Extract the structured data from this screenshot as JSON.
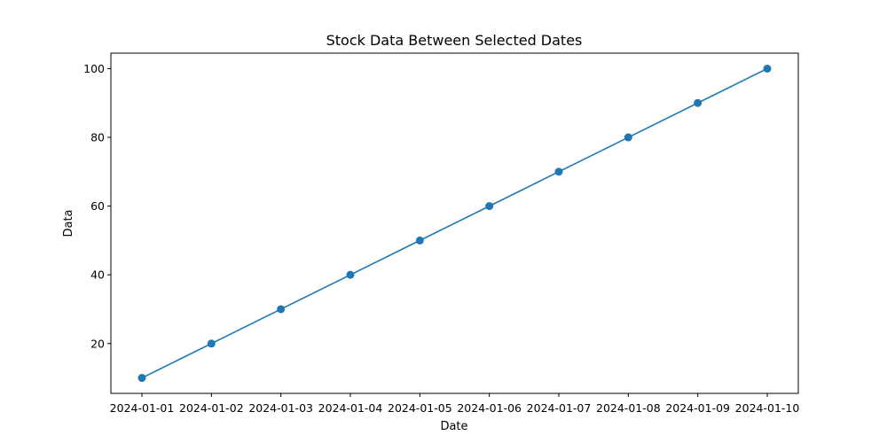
{
  "chart_data": {
    "type": "line",
    "title": "Stock Data Between Selected Dates",
    "xlabel": "Date",
    "ylabel": "Data",
    "x": [
      "2024-01-01",
      "2024-01-02",
      "2024-01-03",
      "2024-01-04",
      "2024-01-05",
      "2024-01-06",
      "2024-01-07",
      "2024-01-08",
      "2024-01-09",
      "2024-01-10"
    ],
    "series": [
      {
        "values": [
          10,
          20,
          30,
          40,
          50,
          60,
          70,
          80,
          90,
          100
        ],
        "color": "#1f77b4",
        "marker": "circle"
      }
    ],
    "yticks": [
      20,
      40,
      60,
      80,
      100
    ],
    "ylim": [
      5.5,
      104.5
    ],
    "grid": false,
    "legend": "none"
  }
}
